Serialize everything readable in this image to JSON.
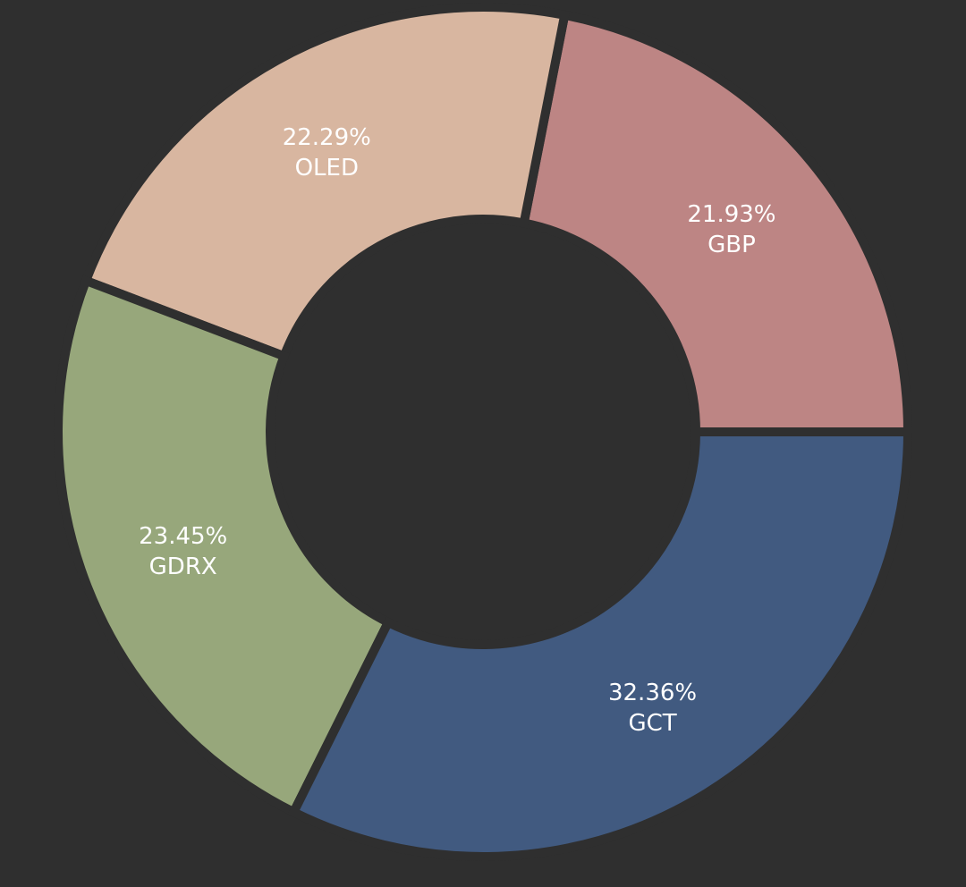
{
  "colors": {
    "background": "#2f2f2f",
    "gap": "#2f2f2f",
    "label": "#ffffff"
  },
  "chart_data": {
    "type": "pie",
    "variant": "donut",
    "title": "",
    "legend": "none",
    "start_angle_deg": 0,
    "direction": "counterclockwise",
    "slices": [
      {
        "label": "GBP",
        "value": 21.93,
        "value_label": "21.93%",
        "color": "#bd8584"
      },
      {
        "label": "OLED",
        "value": 22.29,
        "value_label": "22.29%",
        "color": "#d8b6a0"
      },
      {
        "label": "GDRX",
        "value": 23.45,
        "value_label": "23.45%",
        "color": "#97a77b"
      },
      {
        "label": "GCT",
        "value": 32.36,
        "value_label": "32.36%",
        "color": "#415a80"
      }
    ]
  }
}
